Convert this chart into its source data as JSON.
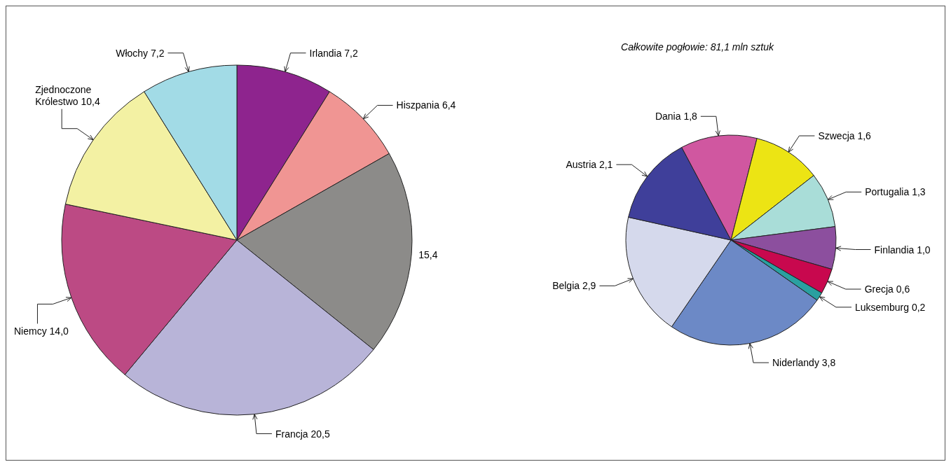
{
  "chart_data": [
    {
      "type": "pie",
      "categories": [
        "Irlandia",
        "Hiszpania",
        null,
        "Francja",
        "Niemcy",
        "Zjednoczone Królestwo",
        "Włochy"
      ],
      "values": [
        7.2,
        6.4,
        15.4,
        20.5,
        14.0,
        10.4,
        7.2
      ],
      "value_labels": [
        "7,2",
        "6,4",
        "15,4",
        "20,5",
        "14,0",
        "10,4",
        "7,2"
      ],
      "colors": [
        "#8e248e",
        "#f09593",
        "#8c8b89",
        "#b8b4d8",
        "#bc4a84",
        "#f3f1a3",
        "#a2dbe6"
      ],
      "annotations": [
        "Całkowite pogłowie: 81,1 mln sztuk"
      ]
    },
    {
      "type": "pie",
      "categories": [
        "Dania",
        "Szwecja",
        "Portugalia",
        "Finlandia",
        "Grecja",
        "Luksemburg",
        "Niderlandy",
        "Belgia",
        "Austria"
      ],
      "values": [
        1.8,
        1.6,
        1.3,
        1.0,
        0.6,
        0.2,
        3.8,
        2.9,
        2.1
      ],
      "value_labels": [
        "1,8",
        "1,6",
        "1,3",
        "1,0",
        "0,6",
        "0,2",
        "3,8",
        "2,9",
        "2,1"
      ],
      "colors": [
        "#d057a0",
        "#ece414",
        "#a9ddd8",
        "#8c4f9e",
        "#c8084e",
        "#2aa0a0",
        "#6c89c6",
        "#d5d9ec",
        "#3f3f9a"
      ]
    }
  ]
}
